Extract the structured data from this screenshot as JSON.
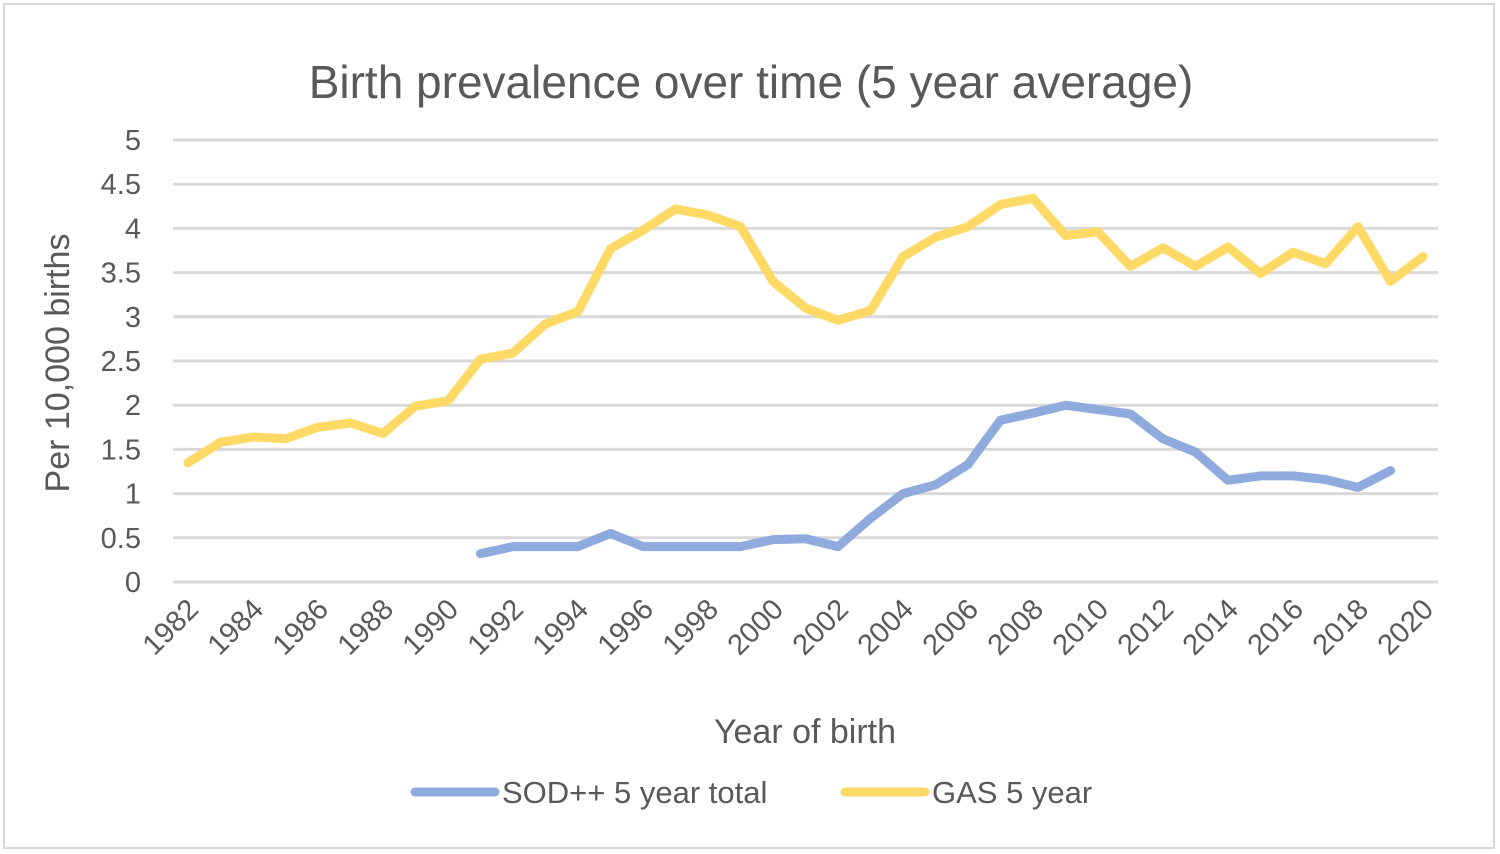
{
  "chart_data": {
    "type": "line",
    "title": "Birth prevalence over time (5 year average)",
    "xlabel": "Year of birth",
    "ylabel": "Per 10,000 births",
    "ylim": [
      0,
      5
    ],
    "y_ticks": [
      "0",
      "0.5",
      "1",
      "1.5",
      "2",
      "2.5",
      "3",
      "3.5",
      "4",
      "4.5",
      "5"
    ],
    "x": [
      1982,
      1983,
      1984,
      1985,
      1986,
      1987,
      1988,
      1989,
      1990,
      1991,
      1992,
      1993,
      1994,
      1995,
      1996,
      1997,
      1998,
      1999,
      2000,
      2001,
      2002,
      2003,
      2004,
      2005,
      2006,
      2007,
      2008,
      2009,
      2010,
      2011,
      2012,
      2013,
      2014,
      2015,
      2016,
      2017,
      2018,
      2019,
      2020
    ],
    "x_tick_labels": [
      "1982",
      "1984",
      "1986",
      "1988",
      "1990",
      "1992",
      "1994",
      "1996",
      "1998",
      "2000",
      "2002",
      "2004",
      "2006",
      "2008",
      "2010",
      "2012",
      "2014",
      "2016",
      "2018",
      "2020"
    ],
    "grid": true,
    "legend_position": "bottom",
    "series": [
      {
        "name": "SOD++ 5 year total",
        "color": "#8faadc",
        "values": [
          null,
          null,
          null,
          null,
          null,
          null,
          null,
          null,
          null,
          0.32,
          0.4,
          0.4,
          0.4,
          0.55,
          0.4,
          0.4,
          0.4,
          0.4,
          0.48,
          0.49,
          0.4,
          0.72,
          1.0,
          1.1,
          1.33,
          1.83,
          1.91,
          2.0,
          1.95,
          1.9,
          1.62,
          1.47,
          1.15,
          1.2,
          1.2,
          1.16,
          1.07,
          1.26,
          null
        ]
      },
      {
        "name": "GAS 5 year",
        "color": "#ffd966",
        "values": [
          1.35,
          1.58,
          1.64,
          1.62,
          1.75,
          1.8,
          1.68,
          1.99,
          2.05,
          2.52,
          2.59,
          2.92,
          3.06,
          3.77,
          3.98,
          4.22,
          4.15,
          4.02,
          3.4,
          3.1,
          2.96,
          3.07,
          3.68,
          3.9,
          4.02,
          4.27,
          4.34,
          3.92,
          3.96,
          3.57,
          3.78,
          3.57,
          3.79,
          3.49,
          3.73,
          3.6,
          4.02,
          3.4,
          3.68
        ]
      }
    ]
  }
}
